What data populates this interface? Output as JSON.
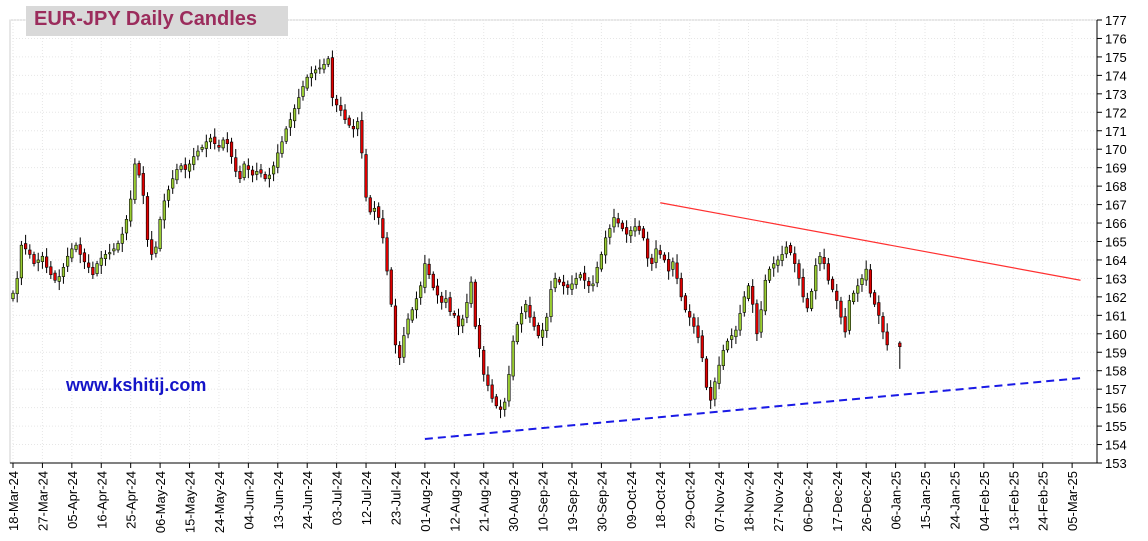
{
  "chart_data": {
    "type": "candlestick",
    "title": "EUR-JPY Daily  Candles",
    "watermark": "www.kshitij.com",
    "ylim": [
      153,
      177
    ],
    "y_ticks": [
      153,
      154,
      155,
      156,
      157,
      158,
      159,
      160,
      161,
      162,
      163,
      164,
      165,
      166,
      167,
      168,
      169,
      170,
      171,
      172,
      173,
      174,
      175,
      176,
      177
    ],
    "x_tick_labels": [
      "18-Mar-24",
      "27-Mar-24",
      "05-Apr-24",
      "16-Apr-24",
      "25-Apr-24",
      "06-May-24",
      "15-May-24",
      "24-May-24",
      "04-Jun-24",
      "13-Jun-24",
      "24-Jun-24",
      "03-Jul-24",
      "12-Jul-24",
      "23-Jul-24",
      "01-Aug-24",
      "12-Aug-24",
      "21-Aug-24",
      "30-Aug-24",
      "10-Sep-24",
      "19-Sep-24",
      "30-Sep-24",
      "09-Oct-24",
      "18-Oct-24",
      "29-Oct-24",
      "07-Nov-24",
      "18-Nov-24",
      "27-Nov-24",
      "06-Dec-24",
      "17-Dec-24",
      "26-Dec-24",
      "06-Jan-25",
      "15-Jan-25",
      "24-Jan-25",
      "04-Feb-25",
      "13-Feb-25",
      "24-Feb-25",
      "05-Mar-25"
    ],
    "bullish_color": "#9acd32",
    "bearish_color": "#e00000",
    "trendlines": [
      {
        "from": [
          "18-Oct-24",
          167.1
        ],
        "to": [
          "05-Mar-25+2",
          162.9
        ],
        "color": "#ff3030",
        "style": "solid"
      },
      {
        "from": [
          "01-Aug-24",
          154.3
        ],
        "to": [
          "05-Mar-25+2",
          157.6
        ],
        "color": "#1a1ae6",
        "style": "dashed"
      }
    ],
    "close_series": [
      162.2,
      163.0,
      164.8,
      164.6,
      164.3,
      163.8,
      164.0,
      164.2,
      163.6,
      163.2,
      162.9,
      163.1,
      163.6,
      164.2,
      164.6,
      164.8,
      164.3,
      163.9,
      163.6,
      163.2,
      163.8,
      164.1,
      164.3,
      164.4,
      164.6,
      164.9,
      165.4,
      166.2,
      167.3,
      169.2,
      168.6,
      167.5,
      165.1,
      164.3,
      164.7,
      166.2,
      167.2,
      167.8,
      168.4,
      168.9,
      169.1,
      168.9,
      169.2,
      169.6,
      169.9,
      170.1,
      170.4,
      170.6,
      170.3,
      170.1,
      170.5,
      170.3,
      169.6,
      168.8,
      168.4,
      169.2,
      168.9,
      168.6,
      168.8,
      168.7,
      168.4,
      168.6,
      169.1,
      169.8,
      170.4,
      171.1,
      171.6,
      172.2,
      172.8,
      173.4,
      173.9,
      174.1,
      174.3,
      174.4,
      174.6,
      174.9,
      172.8,
      172.4,
      172.1,
      171.6,
      171.3,
      171.1,
      171.5,
      169.8,
      167.4,
      166.6,
      166.8,
      166.3,
      165.2,
      163.4,
      161.6,
      159.4,
      158.7,
      159.9,
      160.8,
      161.3,
      161.9,
      162.6,
      163.8,
      163.2,
      162.5,
      162.1,
      161.7,
      161.9,
      161.2,
      161.0,
      160.4,
      160.8,
      161.7,
      162.8,
      160.4,
      159.2,
      157.8,
      157.2,
      156.5,
      156.1,
      155.9,
      156.3,
      157.8,
      159.6,
      160.5,
      161.1,
      161.6,
      160.9,
      160.4,
      159.9,
      160.2,
      160.9,
      162.4,
      163.0,
      162.8,
      162.6,
      162.5,
      162.7,
      163.0,
      163.2,
      162.9,
      162.6,
      162.7,
      163.6,
      164.3,
      165.2,
      165.7,
      166.3,
      166.0,
      165.7,
      165.4,
      165.6,
      165.8,
      165.6,
      165.2,
      164.1,
      163.8,
      164.6,
      164.3,
      164.0,
      163.4,
      163.9,
      163.0,
      162.0,
      161.3,
      160.9,
      160.4,
      159.8,
      158.7,
      157.1,
      156.4,
      157.4,
      158.3,
      159.1,
      159.6,
      159.9,
      160.2,
      161.1,
      162.0,
      162.6,
      161.6,
      160.0,
      161.3,
      162.9,
      163.5,
      163.8,
      164.0,
      164.3,
      164.7,
      164.4,
      163.8,
      163.0,
      162.0,
      161.4,
      162.3,
      163.7,
      164.2,
      163.8,
      162.9,
      162.4,
      161.8,
      160.9,
      160.1,
      161.8,
      162.2,
      162.6,
      163.0,
      163.5,
      162.2,
      161.6,
      161.0,
      160.1,
      159.4
    ],
    "last_candle": {
      "open": 159.5,
      "high": 159.6,
      "low": 158.1,
      "close": 159.3
    }
  }
}
